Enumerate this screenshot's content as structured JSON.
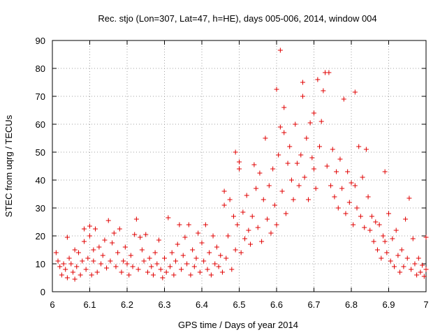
{
  "chart_data": {
    "type": "scatter",
    "title": "Rec. stjo (Lon=307, Lat=47, h=HE), days 005-006, 2014, window 004",
    "xlabel": "GPS time / Days of year 2014",
    "ylabel": "STEC from uqrg / TECUs",
    "xlim": [
      6,
      7
    ],
    "ylim": [
      0,
      90
    ],
    "grid": true,
    "marker": "plus",
    "color": "#e00000",
    "xticks": [
      "6",
      "6.1",
      "6.2",
      "6.3",
      "6.4",
      "6.5",
      "6.6",
      "6.7",
      "6.8",
      "6.9",
      "7"
    ],
    "yticks": [
      "0",
      "10",
      "20",
      "30",
      "40",
      "50",
      "60",
      "70",
      "80",
      "90"
    ],
    "series": [
      {
        "name": "STEC",
        "points": [
          [
            6.01,
            14.0
          ],
          [
            6.015,
            11.0
          ],
          [
            6.02,
            9.0
          ],
          [
            6.025,
            6.0
          ],
          [
            6.03,
            10.0
          ],
          [
            6.035,
            8.0
          ],
          [
            6.04,
            5.0
          ],
          [
            6.045,
            12.0
          ],
          [
            6.04,
            19.5
          ],
          [
            6.05,
            10.0
          ],
          [
            6.055,
            7.0
          ],
          [
            6.06,
            4.5
          ],
          [
            6.06,
            15.0
          ],
          [
            6.065,
            9.0
          ],
          [
            6.07,
            14.0
          ],
          [
            6.075,
            6.0
          ],
          [
            6.08,
            11.0
          ],
          [
            6.085,
            18.0
          ],
          [
            6.085,
            22.5
          ],
          [
            6.09,
            8.0
          ],
          [
            6.095,
            12.0
          ],
          [
            6.1,
            23.5
          ],
          [
            6.1,
            20.0
          ],
          [
            6.105,
            6.0
          ],
          [
            6.11,
            15.0
          ],
          [
            6.11,
            11.0
          ],
          [
            6.115,
            22.5
          ],
          [
            6.12,
            7.0
          ],
          [
            6.125,
            16.0
          ],
          [
            6.13,
            10.0
          ],
          [
            6.135,
            13.0
          ],
          [
            6.14,
            18.5
          ],
          [
            6.145,
            8.5
          ],
          [
            6.15,
            25.5
          ],
          [
            6.155,
            11.0
          ],
          [
            6.16,
            17.5
          ],
          [
            6.165,
            21.0
          ],
          [
            6.17,
            9.0
          ],
          [
            6.175,
            14.0
          ],
          [
            6.18,
            22.5
          ],
          [
            6.185,
            7.0
          ],
          [
            6.19,
            11.0
          ],
          [
            6.195,
            16.0
          ],
          [
            6.2,
            10.0
          ],
          [
            6.205,
            6.0
          ],
          [
            6.21,
            13.0
          ],
          [
            6.215,
            9.0
          ],
          [
            6.22,
            20.5
          ],
          [
            6.225,
            26.0
          ],
          [
            6.23,
            8.0
          ],
          [
            6.235,
            19.5
          ],
          [
            6.24,
            15.0
          ],
          [
            6.245,
            11.0
          ],
          [
            6.25,
            20.5
          ],
          [
            6.255,
            7.0
          ],
          [
            6.26,
            12.0
          ],
          [
            6.265,
            9.0
          ],
          [
            6.27,
            6.0
          ],
          [
            6.275,
            14.0
          ],
          [
            6.28,
            10.0
          ],
          [
            6.285,
            18.5
          ],
          [
            6.29,
            8.0
          ],
          [
            6.295,
            5.0
          ],
          [
            6.3,
            12.0
          ],
          [
            6.305,
            7.0
          ],
          [
            6.31,
            26.5
          ],
          [
            6.315,
            9.0
          ],
          [
            6.32,
            14.0
          ],
          [
            6.325,
            6.0
          ],
          [
            6.33,
            11.0
          ],
          [
            6.335,
            17.0
          ],
          [
            6.34,
            24.0
          ],
          [
            6.345,
            8.0
          ],
          [
            6.35,
            13.0
          ],
          [
            6.355,
            19.5
          ],
          [
            6.36,
            10.0
          ],
          [
            6.365,
            24.0
          ],
          [
            6.37,
            6.0
          ],
          [
            6.375,
            15.0
          ],
          [
            6.38,
            9.0
          ],
          [
            6.385,
            12.0
          ],
          [
            6.39,
            21.0
          ],
          [
            6.395,
            7.0
          ],
          [
            6.4,
            17.5
          ],
          [
            6.405,
            11.0
          ],
          [
            6.41,
            24.0
          ],
          [
            6.415,
            8.0
          ],
          [
            6.42,
            14.0
          ],
          [
            6.425,
            6.0
          ],
          [
            6.43,
            20.0
          ],
          [
            6.435,
            10.0
          ],
          [
            6.44,
            16.0
          ],
          [
            6.445,
            9.0
          ],
          [
            6.45,
            13.0
          ],
          [
            6.455,
            7.0
          ],
          [
            6.46,
            36.0
          ],
          [
            6.46,
            31.0
          ],
          [
            6.465,
            12.0
          ],
          [
            6.47,
            20.0
          ],
          [
            6.475,
            33.0
          ],
          [
            6.48,
            8.0
          ],
          [
            6.485,
            27.0
          ],
          [
            6.49,
            15.0
          ],
          [
            6.49,
            50.0
          ],
          [
            6.495,
            24.0
          ],
          [
            6.5,
            46.5
          ],
          [
            6.5,
            44.0
          ],
          [
            6.505,
            14.0
          ],
          [
            6.51,
            28.5
          ],
          [
            6.515,
            19.0
          ],
          [
            6.52,
            34.5
          ],
          [
            6.525,
            22.0
          ],
          [
            6.53,
            17.0
          ],
          [
            6.535,
            27.0
          ],
          [
            6.54,
            45.5
          ],
          [
            6.545,
            37.0
          ],
          [
            6.55,
            23.0
          ],
          [
            6.555,
            42.5
          ],
          [
            6.56,
            18.0
          ],
          [
            6.565,
            33.0
          ],
          [
            6.57,
            55.0
          ],
          [
            6.575,
            26.0
          ],
          [
            6.58,
            38.0
          ],
          [
            6.585,
            21.0
          ],
          [
            6.59,
            44.0
          ],
          [
            6.595,
            31.0
          ],
          [
            6.6,
            72.5
          ],
          [
            6.6,
            24.0
          ],
          [
            6.605,
            49.0
          ],
          [
            6.61,
            86.5
          ],
          [
            6.61,
            59.0
          ],
          [
            6.615,
            36.0
          ],
          [
            6.62,
            57.0
          ],
          [
            6.62,
            66.0
          ],
          [
            6.625,
            28.0
          ],
          [
            6.63,
            46.0
          ],
          [
            6.635,
            52.0
          ],
          [
            6.64,
            40.0
          ],
          [
            6.645,
            33.0
          ],
          [
            6.65,
            60.0
          ],
          [
            6.655,
            46.0
          ],
          [
            6.66,
            38.0
          ],
          [
            6.665,
            49.0
          ],
          [
            6.67,
            75.0
          ],
          [
            6.67,
            70.0
          ],
          [
            6.675,
            41.0
          ],
          [
            6.68,
            55.0
          ],
          [
            6.685,
            33.0
          ],
          [
            6.69,
            60.5
          ],
          [
            6.695,
            48.0
          ],
          [
            6.7,
            64.0
          ],
          [
            6.7,
            44.0
          ],
          [
            6.705,
            37.0
          ],
          [
            6.71,
            76.0
          ],
          [
            6.715,
            52.0
          ],
          [
            6.72,
            61.0
          ],
          [
            6.725,
            72.0
          ],
          [
            6.73,
            78.5
          ],
          [
            6.735,
            45.0
          ],
          [
            6.74,
            78.5
          ],
          [
            6.745,
            38.0
          ],
          [
            6.75,
            51.0
          ],
          [
            6.755,
            34.0
          ],
          [
            6.76,
            43.0
          ],
          [
            6.765,
            30.0
          ],
          [
            6.77,
            47.5
          ],
          [
            6.775,
            37.0
          ],
          [
            6.78,
            69.0
          ],
          [
            6.785,
            28.0
          ],
          [
            6.79,
            43.0
          ],
          [
            6.795,
            32.0
          ],
          [
            6.8,
            39.0
          ],
          [
            6.805,
            24.0
          ],
          [
            6.81,
            71.5
          ],
          [
            6.81,
            38.0
          ],
          [
            6.815,
            30.0
          ],
          [
            6.82,
            52.0
          ],
          [
            6.825,
            27.0
          ],
          [
            6.83,
            41.0
          ],
          [
            6.835,
            23.0
          ],
          [
            6.84,
            51.0
          ],
          [
            6.845,
            34.0
          ],
          [
            6.85,
            22.0
          ],
          [
            6.855,
            27.0
          ],
          [
            6.86,
            18.0
          ],
          [
            6.865,
            25.0
          ],
          [
            6.87,
            15.0
          ],
          [
            6.875,
            24.0
          ],
          [
            6.88,
            12.0
          ],
          [
            6.885,
            20.0
          ],
          [
            6.89,
            43.0
          ],
          [
            6.89,
            18.0
          ],
          [
            6.895,
            14.0
          ],
          [
            6.9,
            28.0
          ],
          [
            6.905,
            11.0
          ],
          [
            6.91,
            19.0
          ],
          [
            6.915,
            9.0
          ],
          [
            6.92,
            22.0
          ],
          [
            6.925,
            13.0
          ],
          [
            6.93,
            7.0
          ],
          [
            6.935,
            15.0
          ],
          [
            6.94,
            9.0
          ],
          [
            6.945,
            26.0
          ],
          [
            6.95,
            12.0
          ],
          [
            6.955,
            33.5
          ],
          [
            6.96,
            8.0
          ],
          [
            6.965,
            19.0
          ],
          [
            6.97,
            10.0
          ],
          [
            6.975,
            6.0
          ],
          [
            6.98,
            12.0
          ],
          [
            6.985,
            7.0
          ],
          [
            6.99,
            9.5
          ],
          [
            6.995,
            5.5
          ],
          [
            7.0,
            19.5
          ],
          [
            7.0,
            8.0
          ]
        ]
      }
    ]
  }
}
